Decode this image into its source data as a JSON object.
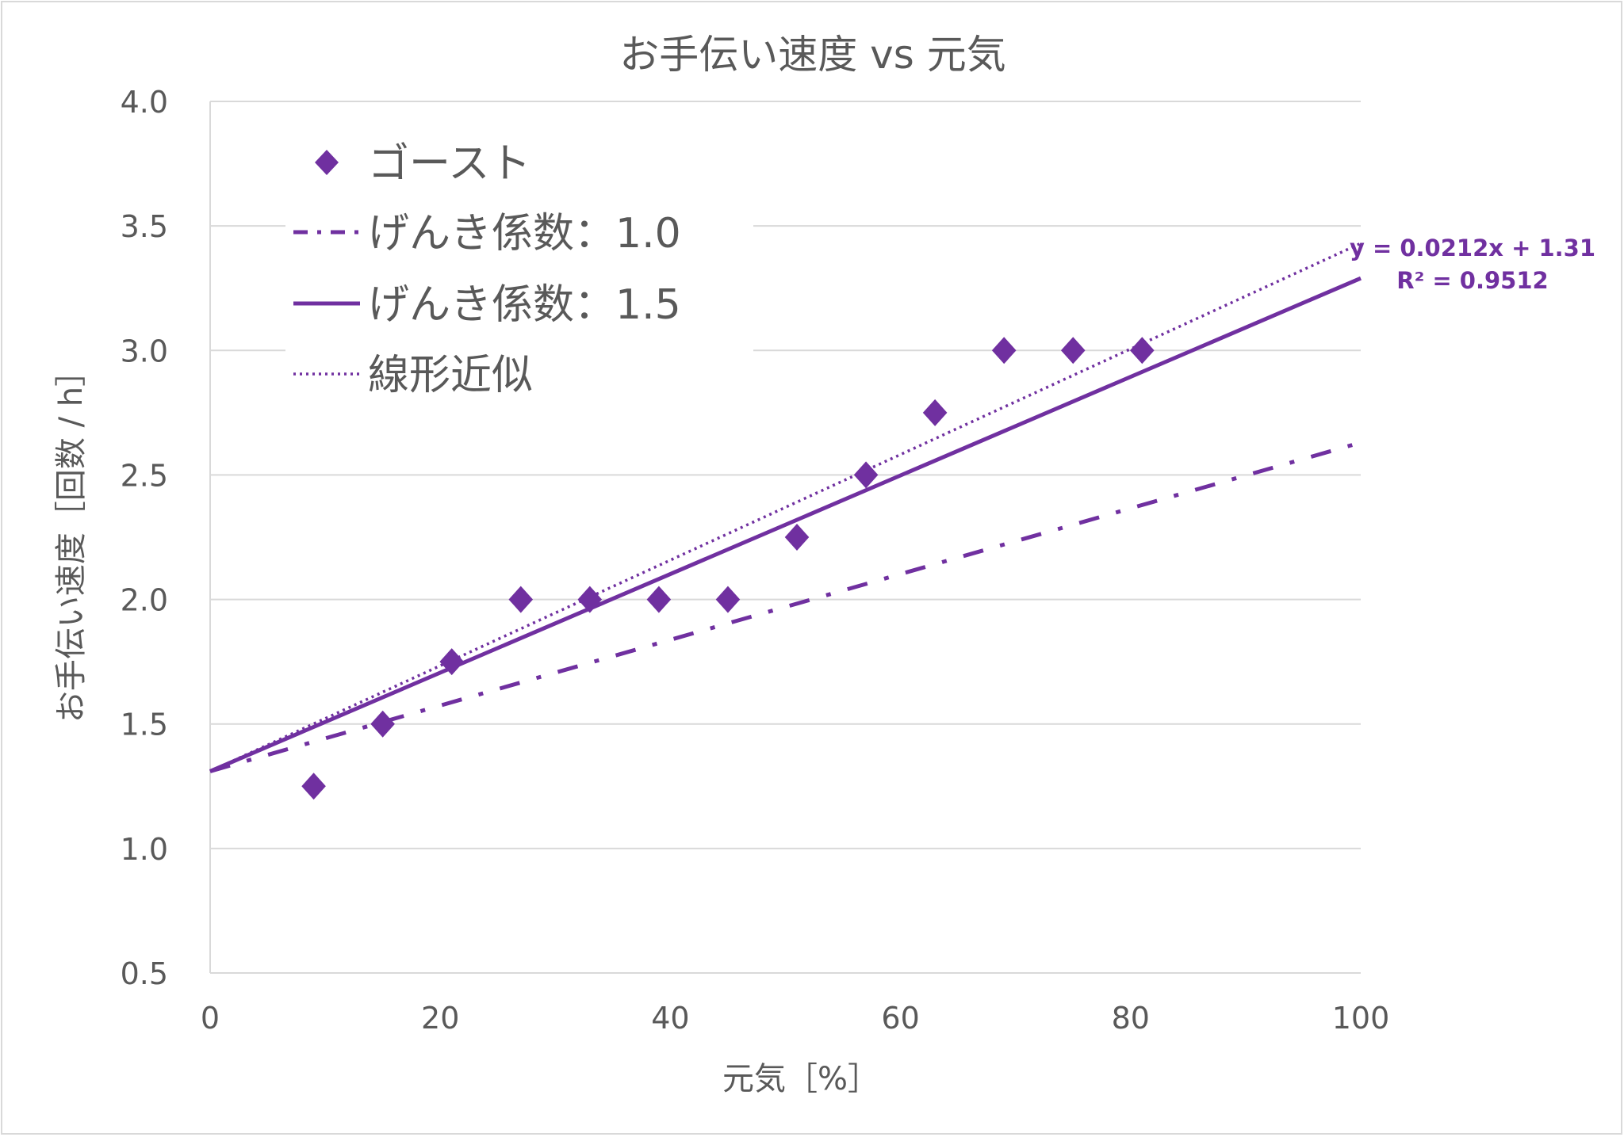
{
  "chart_data": {
    "type": "scatter",
    "title": "お手伝い速度 vs 元気",
    "xlabel": "元気［%］",
    "ylabel": "お手伝い速度［回数 / h］",
    "xlim": [
      0,
      100
    ],
    "ylim": [
      0.5,
      4.0
    ],
    "x_ticks": [
      0,
      20,
      40,
      60,
      80,
      100
    ],
    "y_ticks": [
      0.5,
      1.0,
      1.5,
      2.0,
      2.5,
      3.0,
      3.5,
      4.0
    ],
    "x_tick_labels": [
      "0",
      "20",
      "40",
      "60",
      "80",
      "100"
    ],
    "y_tick_labels": [
      "0.5",
      "1.0",
      "1.5",
      "2.0",
      "2.5",
      "3.0",
      "3.5",
      "4.0"
    ],
    "grid": "horizontal",
    "legend_position": "top-left",
    "series": [
      {
        "name": "ゴースト",
        "kind": "scatter",
        "marker": "diamond",
        "x": [
          9,
          15,
          21,
          27,
          33,
          39,
          45,
          51,
          57,
          63,
          69,
          75,
          81
        ],
        "y": [
          1.25,
          1.5,
          1.75,
          2.0,
          2.0,
          2.0,
          2.0,
          2.25,
          2.5,
          2.75,
          3.0,
          3.0,
          3.0
        ]
      },
      {
        "name": "げんき係数：1.0",
        "kind": "line",
        "style": "dash-dot",
        "x": [
          0,
          100
        ],
        "y": [
          1.31,
          2.63
        ]
      },
      {
        "name": "げんき係数：1.5",
        "kind": "line",
        "style": "solid",
        "x": [
          0,
          100
        ],
        "y": [
          1.31,
          3.29
        ]
      },
      {
        "name": "線形近似",
        "kind": "line",
        "style": "dotted",
        "x": [
          0,
          100
        ],
        "y": [
          1.31,
          3.43
        ]
      }
    ],
    "annotations": {
      "equation": "y = 0.0212x + 1.31",
      "r2": "R² = 0.9512"
    },
    "colors": {
      "series": "#7030A0",
      "text": "#595959",
      "grid": "#D9D9D9"
    }
  }
}
